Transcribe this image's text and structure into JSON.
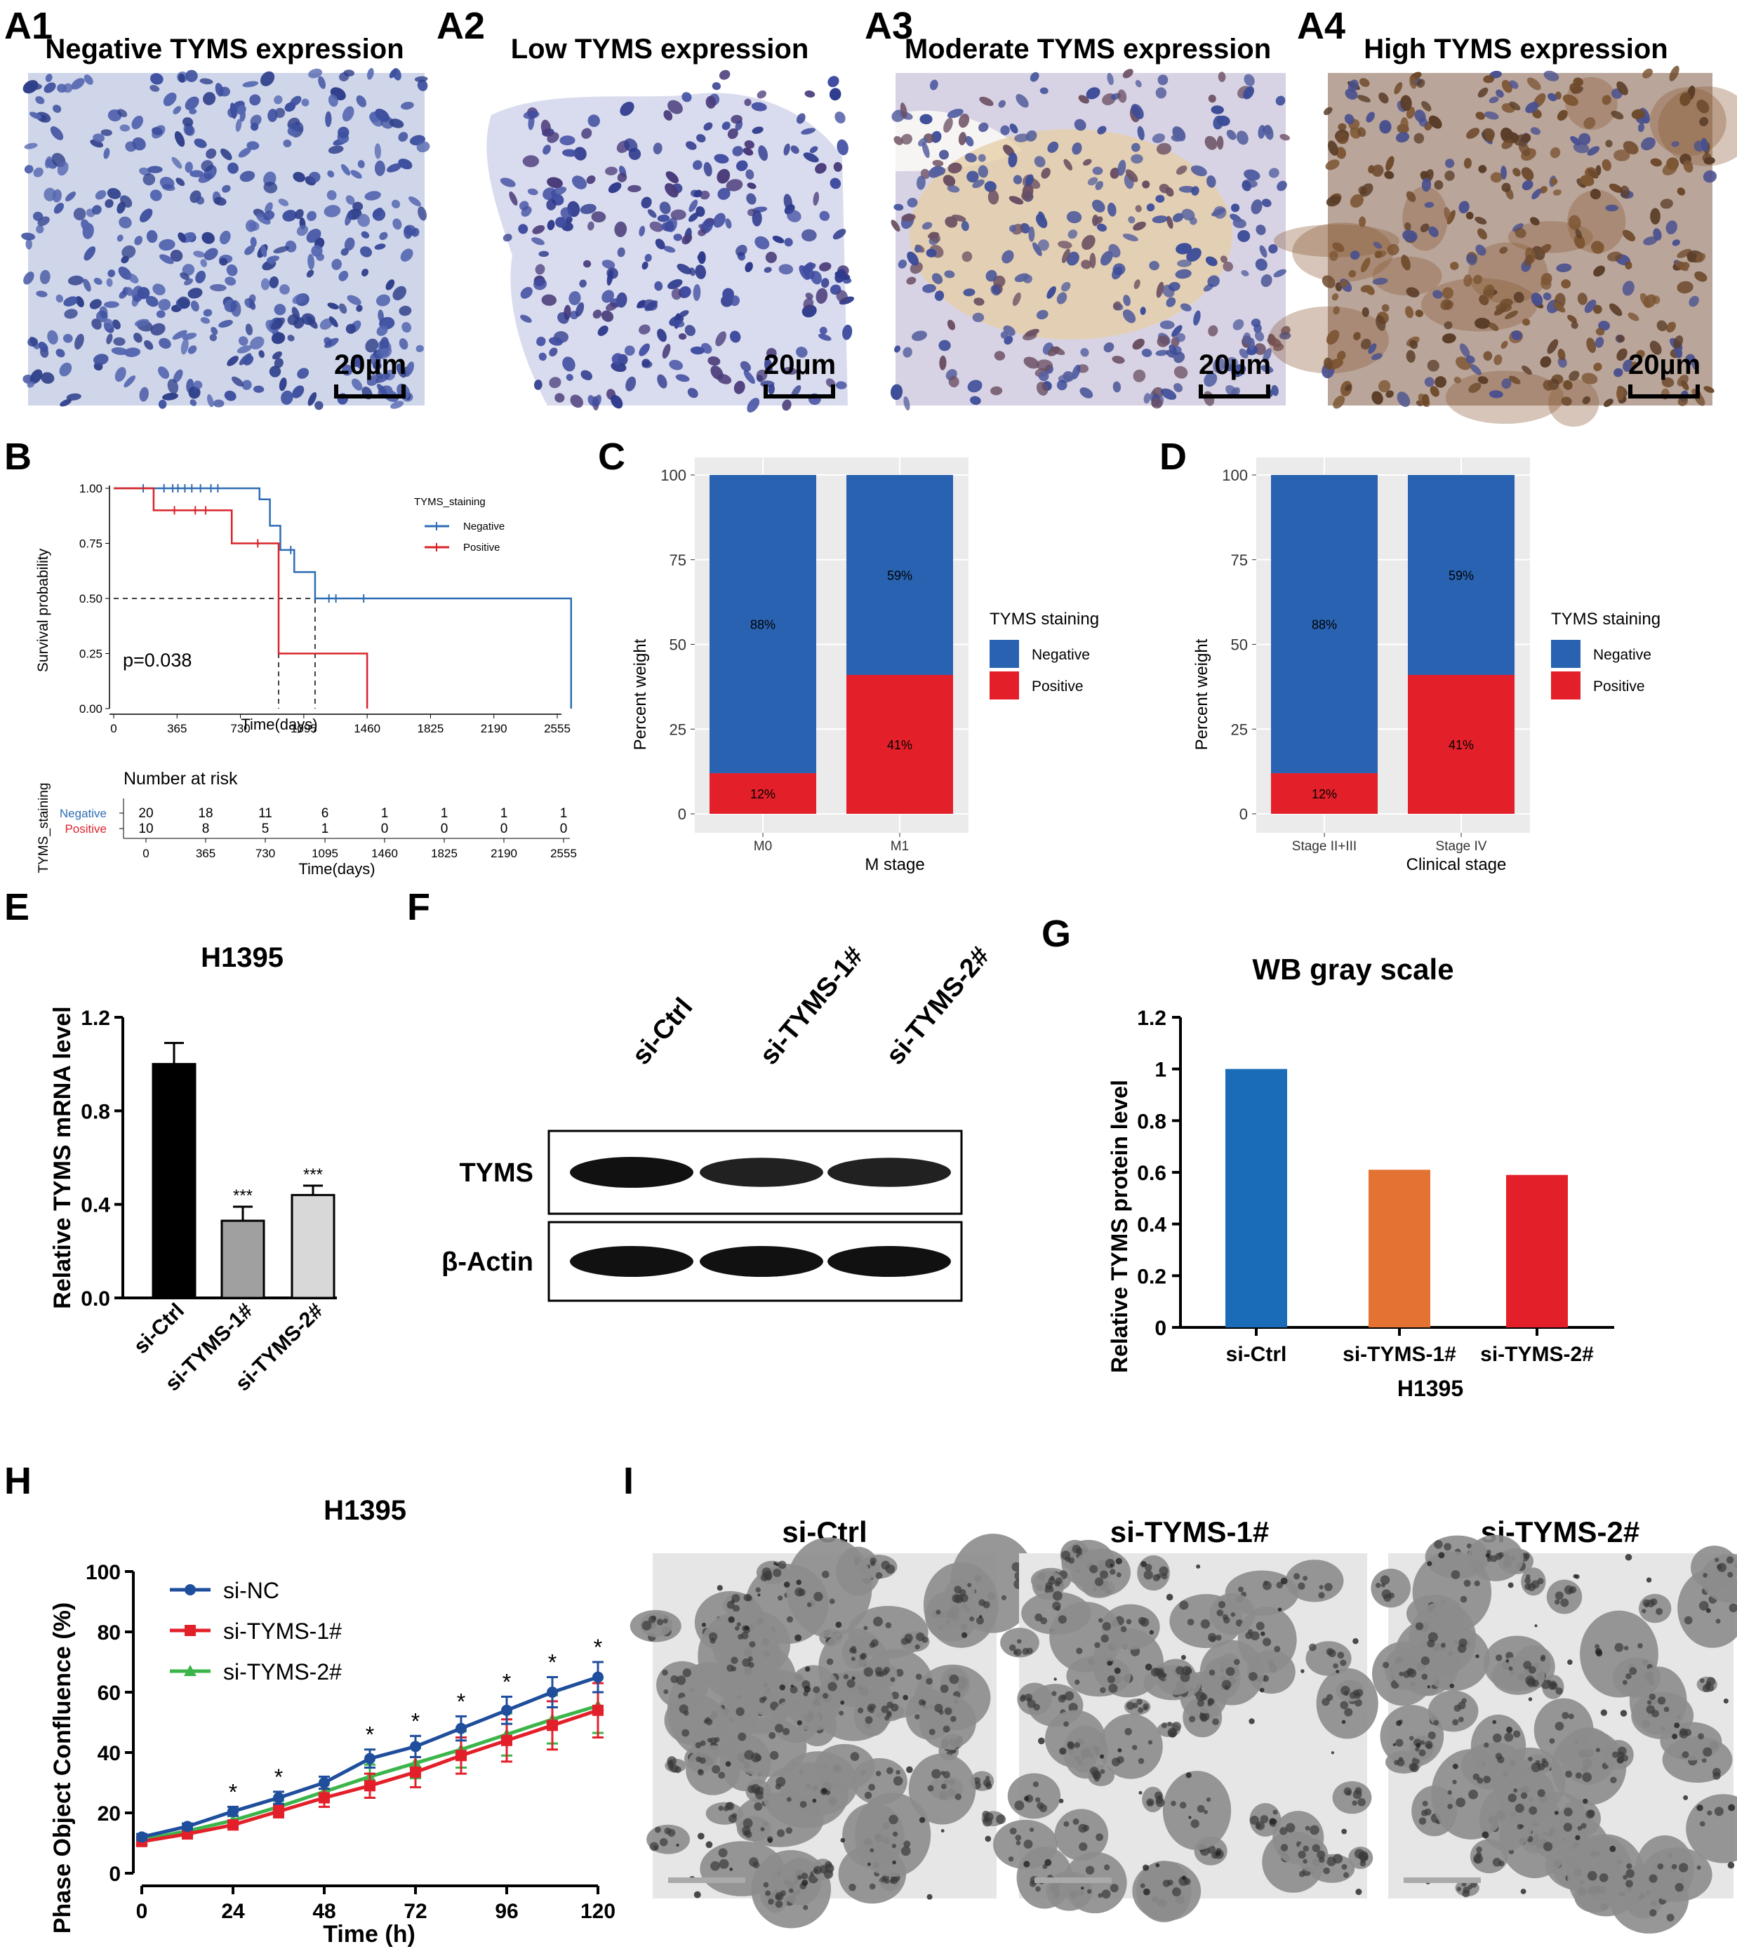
{
  "panel_a": {
    "panels": [
      {
        "label": "A1",
        "title": "Negative TYMS expression",
        "scale": "20µm",
        "stain": "negative"
      },
      {
        "label": "A2",
        "title": "Low TYMS expression",
        "scale": "20µm",
        "stain": "low"
      },
      {
        "label": "A3",
        "title": "Moderate TYMS expression",
        "scale": "20µm",
        "stain": "moderate"
      },
      {
        "label": "A4",
        "title": "High TYMS expression",
        "scale": "20µm",
        "stain": "high"
      }
    ],
    "colors": {
      "hematoxylin": "#3b4f9c",
      "dab": "#8a5a2e",
      "background": "#d8dcea"
    }
  },
  "panel_b": {
    "label": "B",
    "xlabel": "Time(days)",
    "ylabel": "Survival probability",
    "legend_title": "TYMS_staining",
    "pvalue": "p=0.038",
    "risk_title": "Number at risk",
    "risk_ylabel": "TYMS_staining",
    "risk_xlabel": "Time(days)",
    "chart_data": {
      "type": "line",
      "xticks": [
        0,
        365,
        730,
        1095,
        1460,
        1825,
        2190,
        2555
      ],
      "yticks": [
        "0.00",
        "0.25",
        "0.50",
        "0.75",
        "1.00"
      ],
      "xlim": [
        0,
        2600
      ],
      "ylim": [
        0,
        1
      ],
      "median_line": 0.5,
      "series": [
        {
          "name": "Negative",
          "color": "#2e6db4",
          "steps": [
            [
              0,
              1.0
            ],
            [
              840,
              0.95
            ],
            [
              900,
              0.83
            ],
            [
              960,
              0.72
            ],
            [
              1040,
              0.62
            ],
            [
              1160,
              0.5
            ],
            [
              2635,
              0.0
            ]
          ],
          "censor": [
            [
              170,
              1.0
            ],
            [
              290,
              1.0
            ],
            [
              340,
              1.0
            ],
            [
              370,
              1.0
            ],
            [
              410,
              1.0
            ],
            [
              450,
              1.0
            ],
            [
              500,
              1.0
            ],
            [
              560,
              1.0
            ],
            [
              600,
              1.0
            ],
            [
              1020,
              0.72
            ],
            [
              1240,
              0.5
            ],
            [
              1280,
              0.5
            ],
            [
              1440,
              0.5
            ]
          ]
        },
        {
          "name": "Positive",
          "color": "#d9232a",
          "steps": [
            [
              0,
              1.0
            ],
            [
              230,
              0.9
            ],
            [
              680,
              0.75
            ],
            [
              950,
              0.25
            ],
            [
              1460,
              0.0
            ]
          ],
          "censor": [
            [
              350,
              0.9
            ],
            [
              470,
              0.9
            ],
            [
              530,
              0.9
            ],
            [
              830,
              0.75
            ]
          ]
        }
      ],
      "risk_table": {
        "times": [
          0,
          365,
          730,
          1095,
          1460,
          1825,
          2190,
          2555
        ],
        "rows": [
          {
            "name": "Negative",
            "color": "#2e6db4",
            "counts": [
              20,
              18,
              11,
              6,
              1,
              1,
              1,
              1
            ]
          },
          {
            "name": "Positive",
            "color": "#d9232a",
            "counts": [
              10,
              8,
              5,
              1,
              0,
              0,
              0,
              0
            ]
          }
        ]
      }
    }
  },
  "panel_c": {
    "label": "C",
    "ylabel": "Percent weight",
    "xlabel": "M stage",
    "legend_title": "TYMS staining",
    "chart_data": {
      "type": "bar",
      "stacked": true,
      "categories": [
        "M0",
        "M1"
      ],
      "yticks": [
        0,
        25,
        50,
        75,
        100
      ],
      "ylim": [
        0,
        100
      ],
      "series": [
        {
          "name": "Negative",
          "color": "#2962b0",
          "values": [
            88,
            59
          ],
          "labels": [
            "88%",
            "59%"
          ]
        },
        {
          "name": "Positive",
          "color": "#e3202a",
          "values": [
            12,
            41
          ],
          "labels": [
            "12%",
            "41%"
          ]
        }
      ]
    }
  },
  "panel_d": {
    "label": "D",
    "ylabel": "Percent weight",
    "xlabel": "Clinical stage",
    "legend_title": "TYMS staining",
    "chart_data": {
      "type": "bar",
      "stacked": true,
      "categories": [
        "Stage II+III",
        "Stage IV"
      ],
      "yticks": [
        0,
        25,
        50,
        75,
        100
      ],
      "ylim": [
        0,
        100
      ],
      "series": [
        {
          "name": "Negative",
          "color": "#2962b0",
          "values": [
            88,
            59
          ],
          "labels": [
            "88%",
            "59%"
          ]
        },
        {
          "name": "Positive",
          "color": "#e3202a",
          "values": [
            12,
            41
          ],
          "labels": [
            "12%",
            "41%"
          ]
        }
      ]
    }
  },
  "panel_e": {
    "label": "E",
    "title": "H1395",
    "ylabel": "Relative TYMS mRNA level",
    "chart_data": {
      "type": "bar",
      "categories": [
        "si-Ctrl",
        "si-TYMS-1#",
        "si-TYMS-2#"
      ],
      "values": [
        1.0,
        0.33,
        0.44
      ],
      "errors": [
        0.09,
        0.06,
        0.04
      ],
      "significance": [
        "",
        "***",
        "***"
      ],
      "colors": [
        "#000000",
        "#a0a0a0",
        "#d8d8d8"
      ],
      "yticks": [
        "0.0",
        "0.4",
        "0.8",
        "1.2"
      ],
      "ylim": [
        0,
        1.2
      ]
    }
  },
  "panel_f": {
    "label": "F",
    "lanes": [
      "si-Ctrl",
      "si-TYMS-1#",
      "si-TYMS-2#"
    ],
    "rows": [
      {
        "name": "TYMS",
        "intensities": [
          1.0,
          0.85,
          0.85
        ]
      },
      {
        "name": "β-Actin",
        "intensities": [
          1.0,
          1.0,
          1.0
        ]
      }
    ]
  },
  "panel_g": {
    "label": "G",
    "title": "WB gray scale",
    "ylabel": "Relative TYMS protein level",
    "xlabel": "H1395",
    "chart_data": {
      "type": "bar",
      "categories": [
        "si-Ctrl",
        "si-TYMS-1#",
        "si-TYMS-2#"
      ],
      "values": [
        1.0,
        0.61,
        0.59
      ],
      "colors": [
        "#1a6cb8",
        "#e37233",
        "#e3202a"
      ],
      "yticks": [
        "0",
        "0.2",
        "0.4",
        "0.6",
        "0.8",
        "1",
        "1.2"
      ],
      "ylim": [
        0,
        1.2
      ]
    }
  },
  "panel_h": {
    "label": "H",
    "title": "H1395",
    "ylabel": "Phase Object Confluence (%)",
    "xlabel": "Time (h)",
    "chart_data": {
      "type": "line",
      "x": [
        0,
        12,
        24,
        36,
        48,
        60,
        72,
        84,
        96,
        108,
        120
      ],
      "xticks": [
        0,
        24,
        48,
        72,
        96,
        120
      ],
      "yticks": [
        0,
        20,
        40,
        60,
        80,
        100
      ],
      "xlim": [
        0,
        120
      ],
      "ylim": [
        0,
        100
      ],
      "significance_at": [
        24,
        36,
        60,
        72,
        84,
        96,
        108,
        120
      ],
      "significance_mark": "*",
      "series": [
        {
          "name": "si-NC",
          "color": "#1f4e9c",
          "marker": "circle",
          "values": [
            12,
            15.5,
            20.5,
            25,
            30,
            38,
            42,
            48,
            54,
            60,
            65
          ],
          "errors": [
            1,
            1,
            1.5,
            2,
            2,
            3,
            3.5,
            4,
            4.5,
            5,
            5
          ]
        },
        {
          "name": "si-TYMS-1#",
          "color": "#e3202a",
          "marker": "square",
          "values": [
            10.5,
            13,
            16,
            20.5,
            25,
            29,
            33.5,
            39,
            44,
            49,
            54
          ],
          "errors": [
            1,
            1,
            1.5,
            2,
            3,
            4,
            5,
            6,
            7,
            8,
            9
          ]
        },
        {
          "name": "si-TYMS-2#",
          "color": "#3bb54a",
          "marker": "triangle",
          "values": [
            11,
            14,
            17.5,
            22,
            27,
            32,
            36.5,
            41,
            46,
            51,
            55.5
          ],
          "errors": [
            1,
            1,
            1.5,
            2,
            3,
            4,
            5,
            6,
            7,
            8,
            9
          ]
        }
      ]
    }
  },
  "panel_i": {
    "label": "I",
    "panels": [
      {
        "title": "si-Ctrl",
        "coverage": 0.62
      },
      {
        "title": "si-TYMS-1#",
        "coverage": 0.42
      },
      {
        "title": "si-TYMS-2#",
        "coverage": 0.48
      }
    ]
  }
}
